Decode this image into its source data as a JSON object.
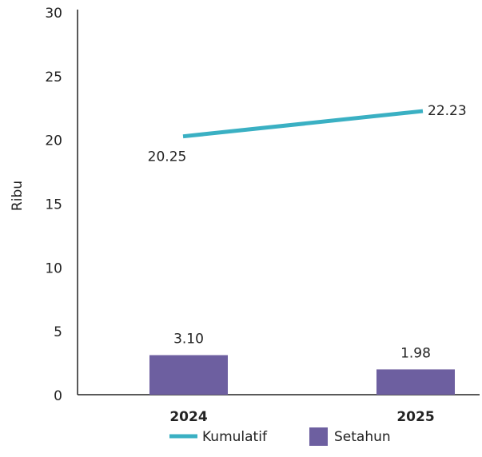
{
  "chart_data": {
    "type": "bar_line",
    "ylabel": "Ribu",
    "categories": [
      "2024",
      "2025"
    ],
    "series": [
      {
        "name": "Kumulatif",
        "type": "line",
        "color": "#3ab0c3",
        "values": [
          20.25,
          22.23
        ]
      },
      {
        "name": "Setahun",
        "type": "bar",
        "color": "#6d5fa0",
        "values": [
          3.1,
          1.98
        ],
        "value_labels": [
          "3.10",
          "1.98"
        ]
      }
    ],
    "ylim": [
      0,
      30
    ],
    "yticks": [
      0,
      5,
      10,
      15,
      20,
      25,
      30
    ],
    "grid": false
  }
}
